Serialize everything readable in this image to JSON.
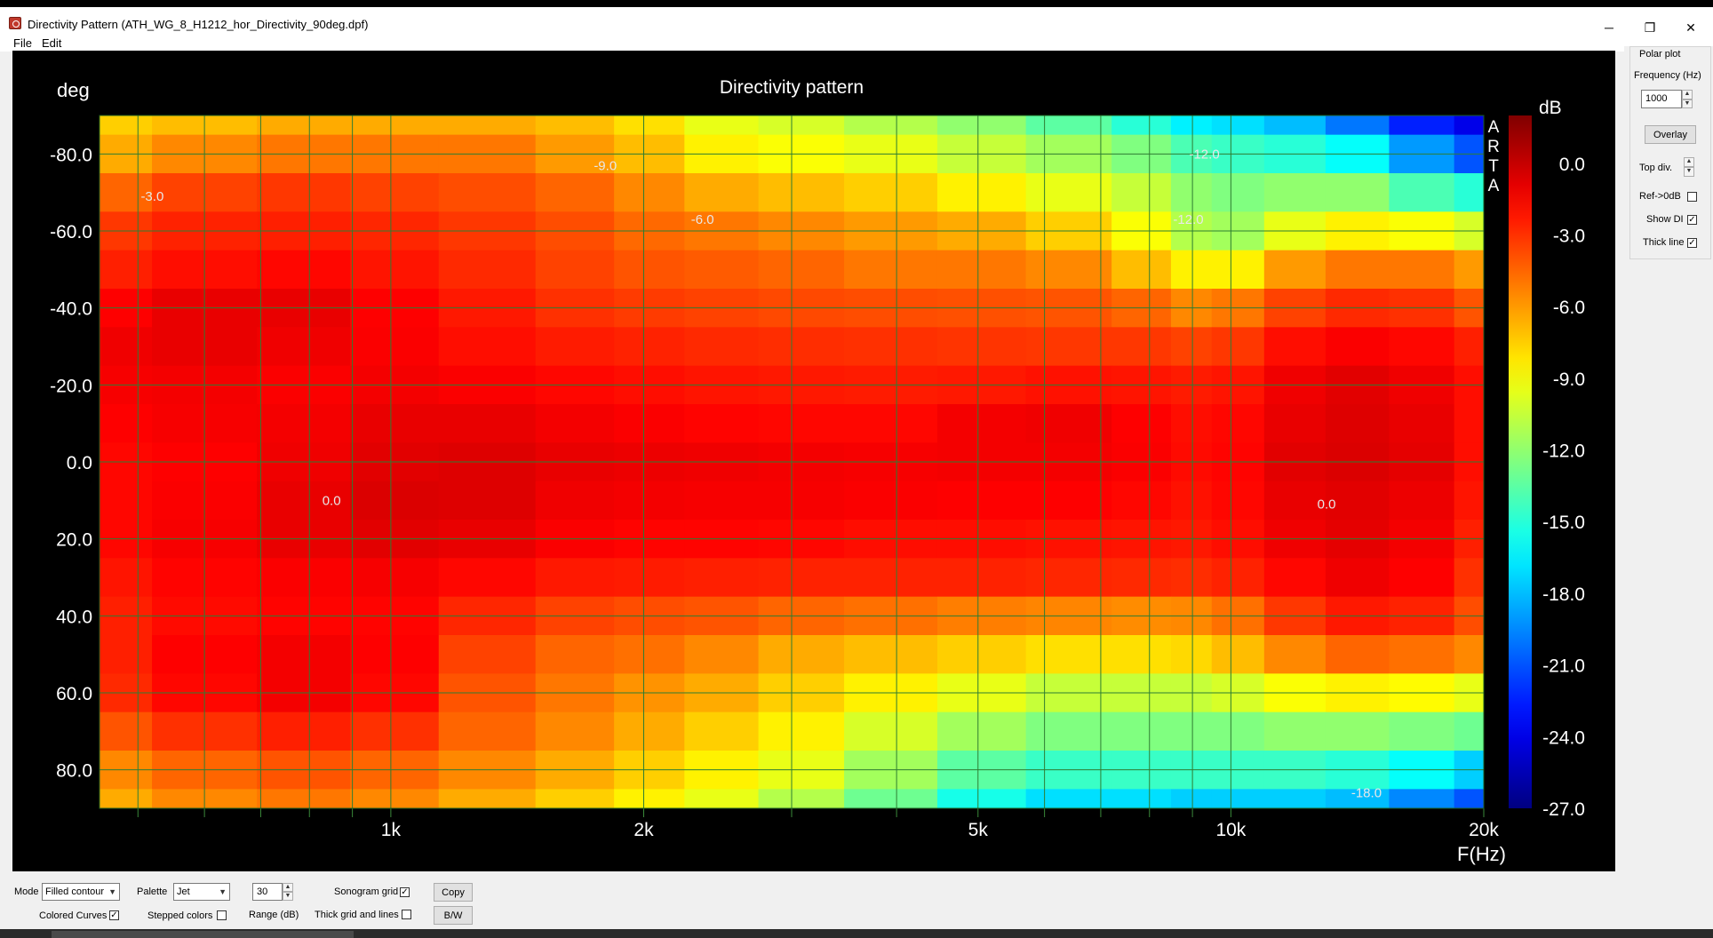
{
  "window": {
    "title": "Directivity Pattern  (ATH_WG_8_H1212_hor_Directivity_90deg.dpf)",
    "minimize_glyph": "─",
    "restore_glyph": "❐",
    "close_glyph": "✕"
  },
  "menu": {
    "items": [
      "File",
      "Edit"
    ]
  },
  "chart_data": {
    "type": "heatmap",
    "title": "Directivity pattern",
    "xlabel": "F(Hz)",
    "ylabel": "deg",
    "colorbar_label": "dB",
    "watermark": "ARTA",
    "x_scale": "log",
    "xlim": [
      450,
      20000
    ],
    "ylim": [
      -90,
      90
    ],
    "x_ticks": [
      1000,
      2000,
      5000,
      10000,
      20000
    ],
    "x_tick_labels": [
      "1k",
      "2k",
      "5k",
      "10k",
      "20k"
    ],
    "y_ticks": [
      -80,
      -60,
      -40,
      -20,
      0,
      20,
      40,
      60,
      80
    ],
    "y_tick_labels": [
      "-80.0",
      "-60.0",
      "-40.0",
      "-20.0",
      "0.0",
      "20.0",
      "40.0",
      "60.0",
      "80.0"
    ],
    "colorbar_ticks": [
      0,
      -3,
      -6,
      -9,
      -12,
      -15,
      -18,
      -21,
      -24,
      -27
    ],
    "colorbar_tick_labels": [
      "0.0",
      "-3.0",
      "-6.0",
      "-9.0",
      "-12.0",
      "-15.0",
      "-18.0",
      "-21.0",
      "-24.0",
      "-27.0"
    ],
    "colorbar_range": [
      -27,
      2
    ],
    "palette": "Jet",
    "grid": true,
    "contour_step_db": 3,
    "contour_labels": [
      {
        "text": "-3.0",
        "freq": 520,
        "deg": -69
      },
      {
        "text": "-9.0",
        "freq": 1800,
        "deg": -77
      },
      {
        "text": "-6.0",
        "freq": 2350,
        "deg": -63
      },
      {
        "text": "-12.0",
        "freq": 9300,
        "deg": -80
      },
      {
        "text": "-12.0",
        "freq": 8900,
        "deg": -63
      },
      {
        "text": "0.0",
        "freq": 850,
        "deg": 10
      },
      {
        "text": "0.0",
        "freq": 13000,
        "deg": 11
      },
      {
        "text": "-18.0",
        "freq": 14500,
        "deg": 86
      }
    ],
    "grid_freqs": [
      500,
      600,
      700,
      800,
      900,
      1000,
      2000,
      3000,
      4000,
      5000,
      6000,
      7000,
      8000,
      9000,
      10000,
      20000
    ],
    "freqs": [
      450,
      600,
      800,
      1000,
      1300,
      1700,
      2000,
      2500,
      3000,
      4000,
      5000,
      6500,
      8000,
      9000,
      10000,
      12000,
      14000,
      17000,
      20000
    ],
    "angles": [
      -90,
      -80,
      -70,
      -60,
      -50,
      -40,
      -30,
      -20,
      -10,
      0,
      10,
      20,
      30,
      40,
      50,
      60,
      70,
      80,
      90
    ],
    "values_db": [
      [
        -7.5,
        -7,
        -6.5,
        -6.5,
        -6.5,
        -7,
        -8,
        -9.5,
        -10,
        -11,
        -12,
        -13.5,
        -15,
        -16.5,
        -17,
        -18,
        -20,
        -22.5,
        -24
      ],
      [
        -6.5,
        -5.5,
        -5,
        -5,
        -5,
        -6,
        -7,
        -8.5,
        -9,
        -9.5,
        -10.5,
        -11.5,
        -12.5,
        -14,
        -14.5,
        -15,
        -16,
        -19,
        -21
      ],
      [
        -4.5,
        -3.5,
        -3.2,
        -3.5,
        -3.8,
        -4.5,
        -5.5,
        -6.5,
        -7,
        -7.5,
        -8.5,
        -9.5,
        -10.5,
        -12,
        -12.5,
        -12,
        -12,
        -14,
        -15
      ],
      [
        -3.2,
        -2.6,
        -2.5,
        -2.7,
        -3.2,
        -3.8,
        -4.6,
        -5,
        -5.5,
        -6,
        -6.5,
        -7.5,
        -9,
        -11,
        -11.5,
        -9.5,
        -8.5,
        -9,
        -10
      ],
      [
        -2.5,
        -2,
        -1.8,
        -2.2,
        -2.8,
        -3.5,
        -4,
        -4.2,
        -4.5,
        -5,
        -5,
        -5.5,
        -7,
        -8.5,
        -8.5,
        -6,
        -5,
        -5,
        -6
      ],
      [
        -1.6,
        -1,
        -1,
        -1.6,
        -2.3,
        -3,
        -3.3,
        -3.5,
        -3.7,
        -3.8,
        -3.9,
        -4,
        -4.5,
        -5.5,
        -5,
        -3.5,
        -2.8,
        -3,
        -4
      ],
      [
        -1.2,
        -1,
        -1.2,
        -1.5,
        -2,
        -2.4,
        -2.6,
        -2.8,
        -2.9,
        -3,
        -3.1,
        -3.2,
        -3.2,
        -3.5,
        -3.2,
        -2,
        -1.5,
        -1.8,
        -2.5
      ],
      [
        -1.4,
        -1.3,
        -1.5,
        -1.3,
        -1.5,
        -1.8,
        -2,
        -2.2,
        -2.3,
        -2.4,
        -2.3,
        -2.1,
        -2.2,
        -2.4,
        -2.2,
        -1.2,
        -0.8,
        -1.2,
        -2
      ],
      [
        -1.6,
        -1.4,
        -1.3,
        -1,
        -1,
        -1.3,
        -1.5,
        -1.7,
        -1.8,
        -1.8,
        -1.3,
        -1.2,
        -1.6,
        -2,
        -1.8,
        -1,
        -0.7,
        -1,
        -2
      ],
      [
        -1.8,
        -1.6,
        -1.2,
        -0.8,
        -0.7,
        -1,
        -1.1,
        -1.2,
        -1.3,
        -1.4,
        -1.3,
        -1.3,
        -1.5,
        -1.9,
        -1.7,
        -0.8,
        -0.6,
        -0.9,
        -2
      ],
      [
        -1.8,
        -1.5,
        -1,
        -0.6,
        -0.7,
        -1.2,
        -1.3,
        -1.4,
        -1.4,
        -1.5,
        -1.6,
        -1.6,
        -1.8,
        -2.1,
        -1.8,
        -1,
        -0.8,
        -1.1,
        -2.2
      ],
      [
        -1.8,
        -1.4,
        -1,
        -0.8,
        -1,
        -1.5,
        -1.7,
        -1.7,
        -1.8,
        -2,
        -2,
        -2.1,
        -2.2,
        -2.3,
        -2,
        -1.2,
        -0.9,
        -1.3,
        -2.5
      ],
      [
        -2.2,
        -1.7,
        -1.5,
        -1.4,
        -1.8,
        -2.3,
        -2.4,
        -2.5,
        -2.6,
        -2.6,
        -2.6,
        -2.7,
        -2.8,
        -2.9,
        -2.6,
        -1.8,
        -1.2,
        -1.6,
        -3
      ],
      [
        -2.5,
        -1.9,
        -1.7,
        -1.7,
        -2.7,
        -3.5,
        -3.8,
        -4,
        -4.5,
        -4.8,
        -5.2,
        -5.4,
        -5.6,
        -5.5,
        -4.8,
        -3.2,
        -2.3,
        -2.6,
        -3.8
      ],
      [
        -2.5,
        -1.6,
        -1.3,
        -1.6,
        -3.5,
        -4.5,
        -4.8,
        -5.5,
        -6.5,
        -7,
        -7.5,
        -8,
        -8,
        -7.8,
        -7,
        -5.5,
        -4.5,
        -4.8,
        -5.5
      ],
      [
        -2.8,
        -1.8,
        -1.3,
        -1.8,
        -4,
        -5,
        -5.8,
        -6.5,
        -7.5,
        -8.5,
        -9.5,
        -10.5,
        -10.5,
        -10.5,
        -10,
        -9,
        -8.5,
        -8.8,
        -9.5
      ],
      [
        -4,
        -3,
        -2.5,
        -3,
        -4.5,
        -5.5,
        -6.5,
        -7.5,
        -8.5,
        -10,
        -11.5,
        -12.5,
        -12.5,
        -12.5,
        -12.5,
        -12,
        -12,
        -12.5,
        -13
      ],
      [
        -5.5,
        -4.5,
        -4,
        -4.5,
        -5.5,
        -6.5,
        -7.5,
        -8.5,
        -9.5,
        -11.5,
        -13.5,
        -14.5,
        -14.5,
        -14.5,
        -14.5,
        -14.5,
        -15,
        -16,
        -17.5
      ],
      [
        -6.5,
        -5.5,
        -5,
        -5.5,
        -6.5,
        -7.5,
        -8.5,
        -9.5,
        -11,
        -13,
        -15.5,
        -17,
        -17,
        -17.5,
        -17.5,
        -17.5,
        -18,
        -19.5,
        -21
      ]
    ]
  },
  "panel": {
    "group_title": "Polar plot",
    "frequency_label": "Frequency (Hz)",
    "frequency_value": "1000",
    "overlay_button": "Overlay",
    "top_div_label": "Top div.",
    "ref_label": "Ref->0dB",
    "ref_checked": "",
    "show_di_label": "Show DI",
    "show_di_checked": "✓",
    "thick_line_label": "Thick line",
    "thick_line_checked": "✓"
  },
  "bottom": {
    "mode_label": "Mode",
    "mode_value": "Filled contour",
    "palette_label": "Palette",
    "palette_value": "Jet",
    "range_value": "30",
    "range_label": "Range (dB)",
    "sonogram_grid_label": "Sonogram grid",
    "sonogram_grid_checked": "✓",
    "copy_button": "Copy",
    "colored_curves_label": "Colored Curves",
    "colored_curves_checked": "✓",
    "stepped_colors_label": "Stepped colors",
    "stepped_colors_checked": "",
    "thick_grid_label": "Thick grid and  lines",
    "thick_grid_checked": "",
    "bw_button": "B/W"
  }
}
